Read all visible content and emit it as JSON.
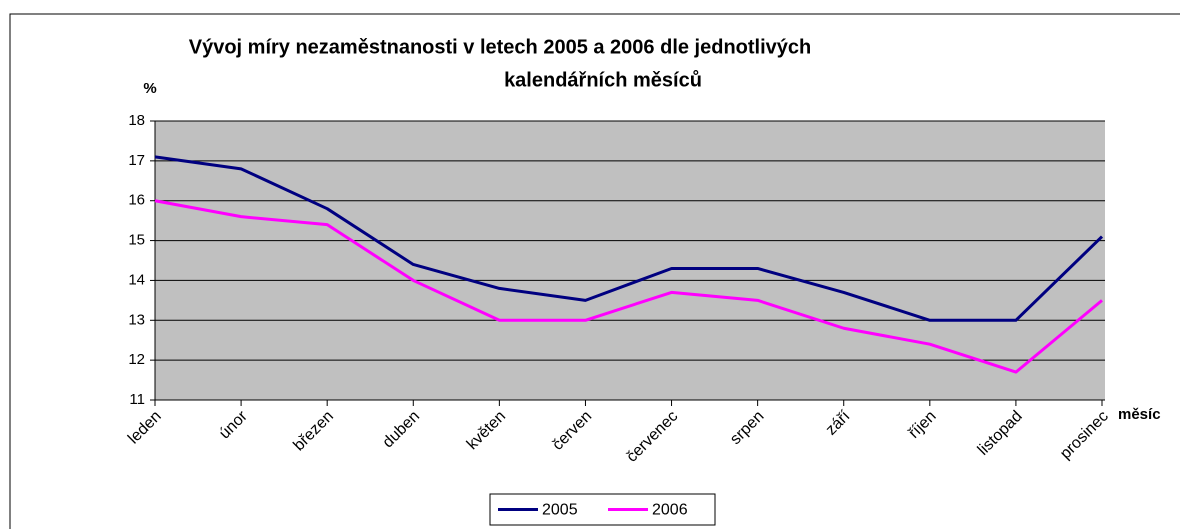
{
  "chart_data": {
    "type": "line",
    "title": [
      "Vývoj míry nezaměstnanosti v letech 2005 a 2006 dle jednotlivých",
      "kalendářních měsíců"
    ],
    "y_label": "%",
    "x_label": "měsíc",
    "categories": [
      "leden",
      "únor",
      "březen",
      "duben",
      "květen",
      "červen",
      "červenec",
      "srpen",
      "září",
      "říjen",
      "listopad",
      "prosinec"
    ],
    "series": [
      {
        "name": "2005",
        "color": "#000080",
        "values": [
          17.1,
          16.8,
          15.8,
          14.4,
          13.8,
          13.5,
          14.3,
          14.3,
          13.7,
          13.0,
          13.0,
          15.1
        ]
      },
      {
        "name": "2006",
        "color": "#ff00ff",
        "values": [
          16.0,
          15.6,
          15.4,
          14.0,
          13.0,
          13.0,
          13.7,
          13.5,
          12.8,
          12.4,
          11.7,
          13.5
        ]
      }
    ],
    "ylim": [
      11,
      18
    ],
    "yticks": [
      11,
      12,
      13,
      14,
      15,
      16,
      17,
      18
    ],
    "grid": true,
    "legend": "bottom"
  }
}
